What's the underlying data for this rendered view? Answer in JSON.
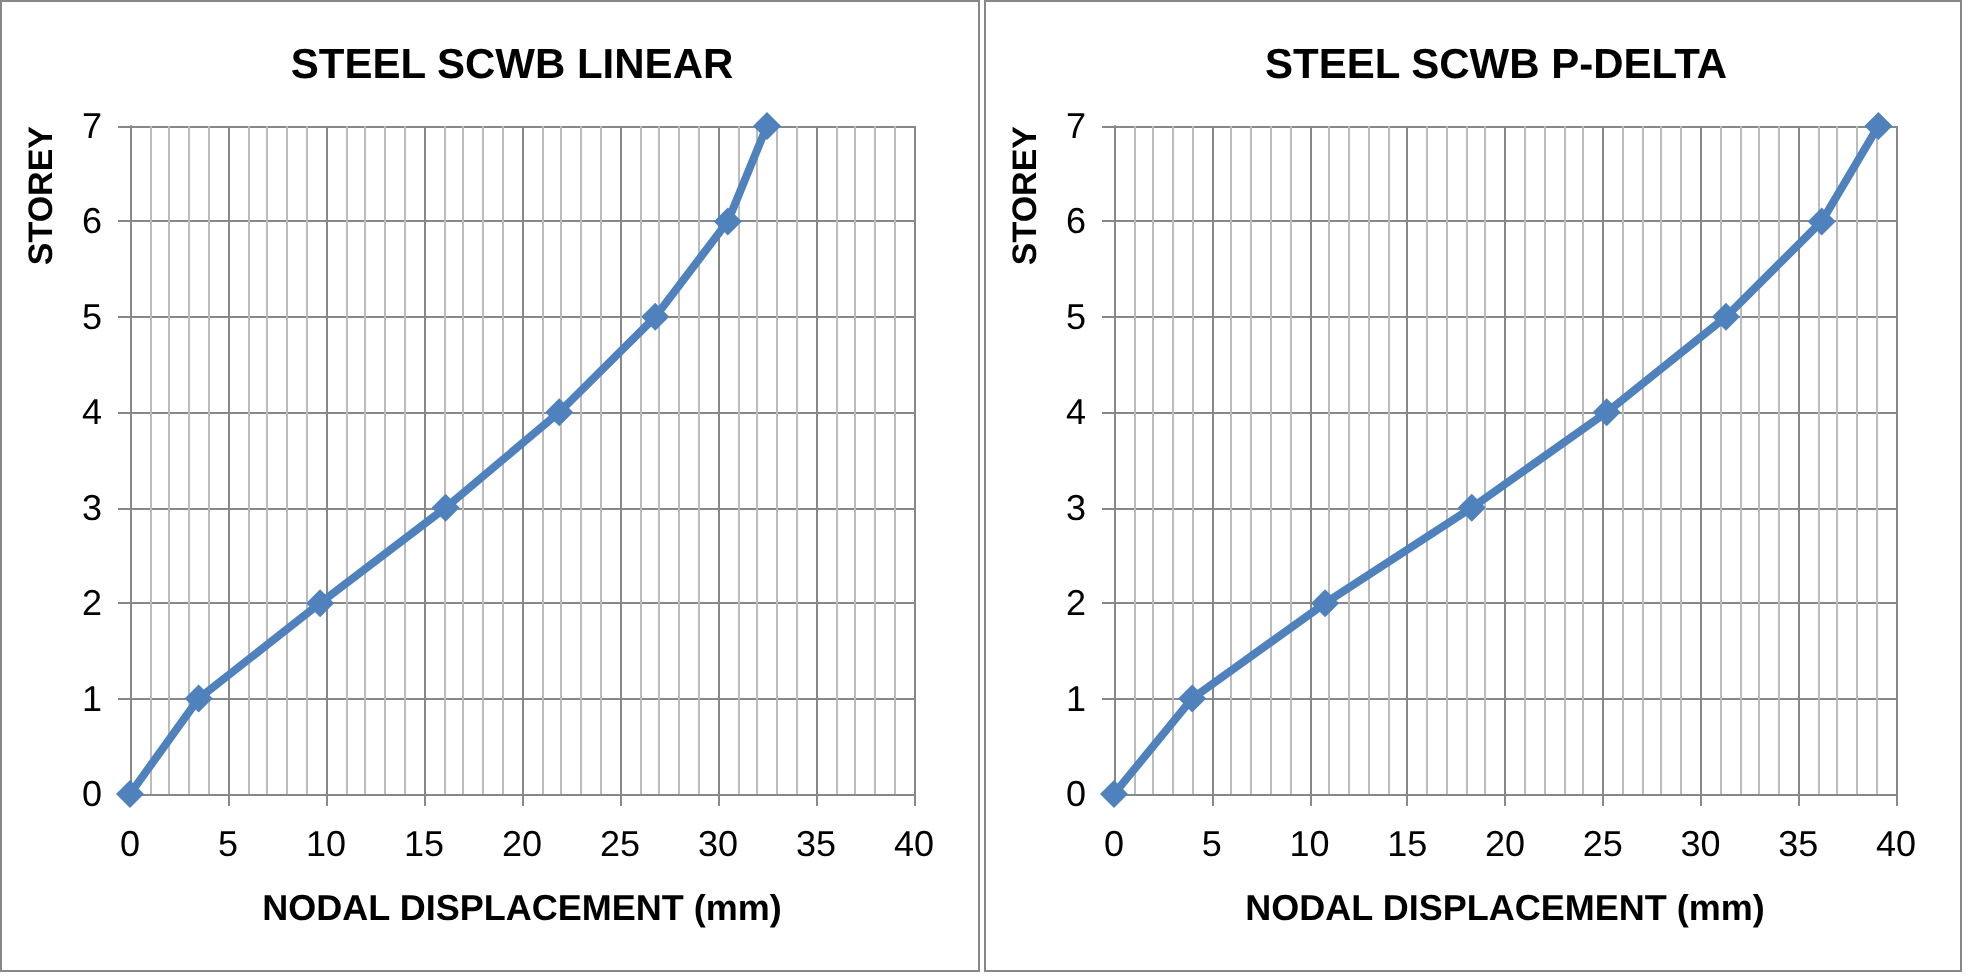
{
  "chart_data": [
    {
      "type": "line",
      "title": "STEEL SCWB LINEAR",
      "xlabel": "NODAL DISPLACEMENT (mm)",
      "ylabel": "STOREY",
      "x": [
        0,
        3.5,
        9.7,
        16.1,
        21.9,
        26.8,
        30.5,
        32.5
      ],
      "series": [
        {
          "color": "#4f81bd",
          "values": [
            0,
            1,
            2,
            3,
            4,
            5,
            6,
            7
          ]
        }
      ],
      "xlim": [
        0,
        40
      ],
      "xticks": [
        0,
        5,
        10,
        15,
        20,
        25,
        30,
        35,
        40
      ],
      "ylim": [
        0,
        7
      ],
      "yticks": [
        0,
        1,
        2,
        3,
        4,
        5,
        6,
        7
      ],
      "grid": true,
      "marker": "diamond",
      "line_style": "solid"
    },
    {
      "type": "line",
      "title": "STEEL SCWB P-DELTA",
      "xlabel": "NODAL DISPLACEMENT (mm)",
      "ylabel": "STOREY",
      "x": [
        0,
        4.0,
        10.8,
        18.3,
        25.2,
        31.3,
        36.2,
        39.1
      ],
      "series": [
        {
          "color": "#4f81bd",
          "values": [
            0,
            1,
            2,
            3,
            4,
            5,
            6,
            7
          ]
        }
      ],
      "xlim": [
        0,
        40
      ],
      "xticks": [
        0,
        5,
        10,
        15,
        20,
        25,
        30,
        35,
        40
      ],
      "ylim": [
        0,
        7
      ],
      "yticks": [
        0,
        1,
        2,
        3,
        4,
        5,
        6,
        7
      ],
      "grid": true,
      "marker": "diamond",
      "line_style": "solid"
    }
  ]
}
